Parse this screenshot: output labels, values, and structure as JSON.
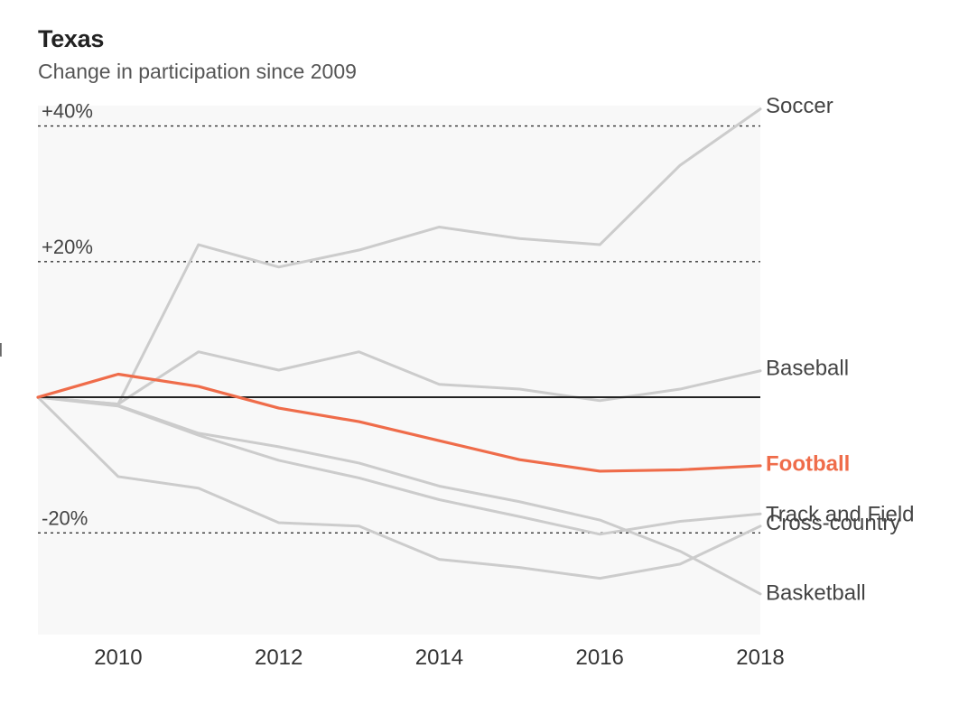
{
  "title": "Texas",
  "subtitle": "Change in participation since 2009",
  "clip_text": "d",
  "chart_data": {
    "type": "line",
    "title": "Texas",
    "subtitle": "Change in participation since 2009",
    "xlabel": "",
    "ylabel": "",
    "x": [
      2009,
      2010,
      2011,
      2012,
      2013,
      2014,
      2015,
      2016,
      2017,
      2018
    ],
    "xlim": [
      2009,
      2018
    ],
    "ylim": [
      -35,
      43
    ],
    "x_ticks": [
      "2010",
      "2012",
      "2014",
      "2016",
      "2018"
    ],
    "y_gridlines": [
      {
        "value": 40,
        "label": "+40%"
      },
      {
        "value": 20,
        "label": "+20%"
      },
      {
        "value": -20,
        "label": "-20%"
      }
    ],
    "zero_line": true,
    "background_color": "#f8f8f8",
    "highlight_color": "#ef6c4a",
    "muted_color": "#cccccc",
    "series": [
      {
        "name": "Soccer",
        "values": [
          0,
          -1,
          22.5,
          19.2,
          21.7,
          25.1,
          23.4,
          22.5,
          34.2,
          42.5
        ],
        "highlight": false
      },
      {
        "name": "Baseball",
        "values": [
          0,
          -1,
          6.7,
          4.0,
          6.7,
          1.9,
          1.2,
          -0.5,
          1.2,
          3.9
        ],
        "highlight": false
      },
      {
        "name": "Football",
        "values": [
          0,
          3.4,
          1.6,
          -1.6,
          -3.6,
          -6.4,
          -9.2,
          -10.9,
          -10.7,
          -10.1
        ],
        "highlight": true
      },
      {
        "name": "Track and Field",
        "values": [
          0,
          -1.2,
          -5.3,
          -7.3,
          -9.7,
          -13.1,
          -15.4,
          -18.1,
          -22.7,
          -29.0
        ],
        "highlight": false
      },
      {
        "name": "Cross-country",
        "values": [
          0,
          -1.3,
          -5.6,
          -9.3,
          -11.9,
          -15.1,
          -17.6,
          -20.2,
          -18.3,
          -17.2
        ],
        "highlight": false
      },
      {
        "name": "Basketball",
        "values": [
          0,
          -11.7,
          -13.4,
          -18.5,
          -19.0,
          -23.9,
          -25.1,
          -26.7,
          -24.6,
          -19.0
        ],
        "highlight": false
      }
    ],
    "end_labels": [
      {
        "text": "Soccer",
        "value": 43.0
      },
      {
        "text": "Baseball",
        "value": 4.3
      },
      {
        "text": "Football",
        "value": -9.8
      },
      {
        "text": "Track and Field",
        "value": -17.2
      },
      {
        "text": "Cross-country",
        "value": -18.5
      },
      {
        "text": "Basketball",
        "value": -28.8
      }
    ]
  }
}
